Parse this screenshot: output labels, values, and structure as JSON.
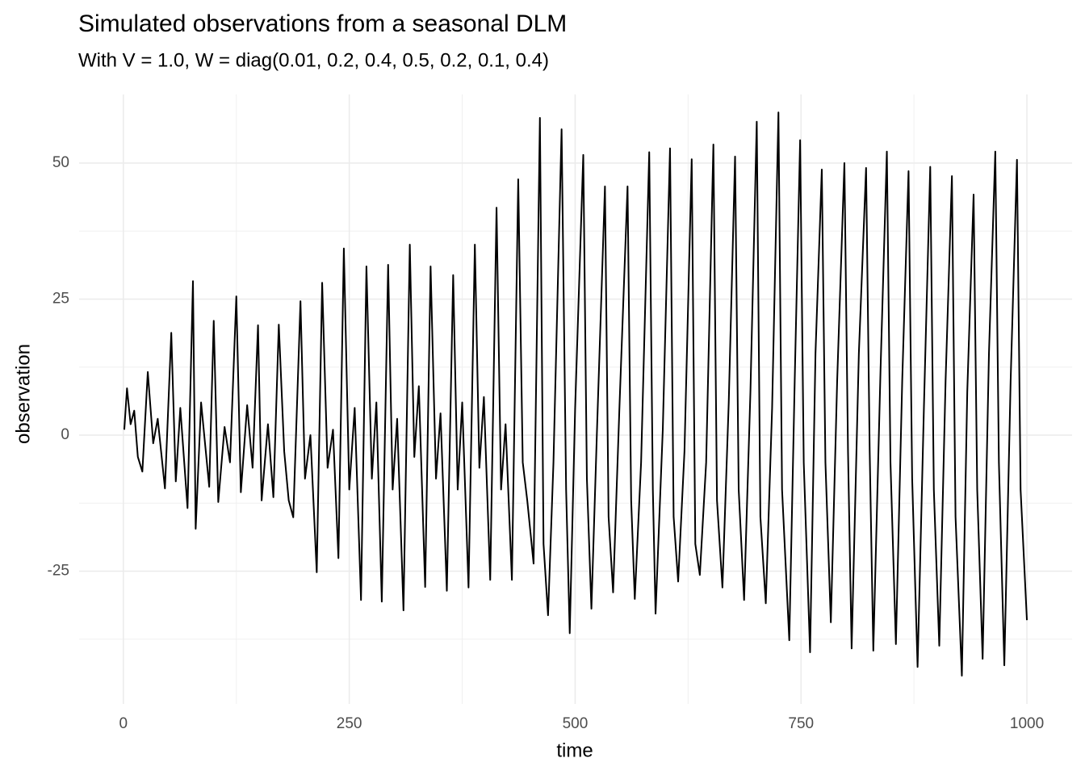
{
  "chart_data": {
    "type": "line",
    "title": "Simulated observations from a seasonal DLM",
    "subtitle": "With V = 1.0, W = diag(0.01, 0.2, 0.4, 0.5, 0.2, 0.1, 0.4)",
    "x_label": "time",
    "y_label": "observation",
    "xlim": [
      -49,
      1050
    ],
    "ylim": [
      -49.4,
      62.6
    ],
    "xticks": [
      0,
      250,
      500,
      750,
      1000
    ],
    "yticks": [
      -25,
      0,
      25,
      50
    ],
    "xminor": [
      125,
      375,
      625,
      875
    ],
    "yminor": [
      -37.5,
      -12.5,
      12.5,
      37.5
    ],
    "grid": true,
    "x": [
      1,
      4,
      8,
      12,
      16,
      21,
      27,
      33,
      38,
      46,
      53,
      58,
      63,
      71,
      77,
      80,
      86,
      95,
      100,
      105,
      112,
      118,
      125,
      130,
      137,
      143,
      149,
      153,
      160,
      166,
      172,
      178,
      183,
      188,
      196,
      201,
      207,
      214,
      220,
      226,
      232,
      238,
      244,
      250,
      256,
      263,
      269,
      275,
      280,
      286,
      293,
      298,
      303,
      310,
      317,
      322,
      327,
      334,
      340,
      346,
      351,
      358,
      365,
      370,
      375,
      382,
      389,
      394,
      399,
      406,
      413,
      418,
      423,
      430,
      437,
      442,
      447,
      454,
      461,
      465,
      470,
      476,
      485,
      490,
      494,
      500,
      509,
      513,
      518,
      524,
      533,
      537,
      542,
      549,
      558,
      562,
      566,
      573,
      582,
      586,
      589,
      597,
      605,
      609,
      614,
      621,
      629,
      633,
      638,
      645,
      653,
      657,
      663,
      670,
      677,
      681,
      687,
      694,
      701,
      705,
      711,
      718,
      725,
      729,
      737,
      743,
      749,
      753,
      760,
      766,
      773,
      777,
      783,
      790,
      798,
      802,
      806,
      814,
      822,
      826,
      830,
      838,
      845,
      849,
      855,
      862,
      869,
      873,
      879,
      886,
      893,
      897,
      903,
      910,
      917,
      921,
      928,
      934,
      941,
      945,
      951,
      958,
      965,
      969,
      975,
      982,
      989,
      993,
      1000
    ],
    "series": [
      {
        "name": "observation",
        "color": "#000000",
        "values": [
          1,
          8.6,
          2,
          4.5,
          -4,
          -6.7,
          11.6,
          -1.5,
          3,
          -9.8,
          18.8,
          -8.5,
          5,
          -13.4,
          28.3,
          -17.2,
          6,
          -9.5,
          21,
          -12.3,
          1.5,
          -5,
          25.5,
          -10.5,
          5.5,
          -6,
          20.2,
          -12,
          2,
          -11.4,
          20.3,
          -3,
          -12,
          -15.1,
          24.6,
          -8,
          0,
          -25.2,
          28,
          -6,
          1,
          -22.6,
          34.3,
          -10,
          5,
          -30.3,
          31,
          -8,
          6,
          -30.6,
          31.3,
          -10,
          3,
          -32.2,
          35,
          -4,
          9,
          -27.9,
          31,
          -8,
          4,
          -28.6,
          29.4,
          -10,
          6,
          -28,
          35,
          -6,
          7,
          -26.6,
          41.8,
          -10,
          2,
          -26.6,
          47,
          -5,
          -12,
          -23.6,
          58.3,
          -20,
          -33.1,
          -5,
          56.2,
          -10,
          -36.4,
          5,
          51.5,
          -8,
          -31.9,
          0,
          45.7,
          -15,
          -28.9,
          5,
          45.7,
          -12,
          -30.1,
          -5,
          52,
          -10,
          -32.8,
          1,
          52.7,
          -15,
          -26.9,
          -3,
          50.7,
          -20,
          -25.7,
          -5,
          53.4,
          -12,
          -28,
          6,
          51.2,
          -10,
          -30.3,
          8,
          57.6,
          -15,
          -30.9,
          5,
          59.3,
          -10,
          -37.7,
          10,
          54.2,
          -5,
          -39.9,
          15,
          48.8,
          -5,
          -34.4,
          10,
          50,
          -3,
          -39.2,
          15,
          49.1,
          -3,
          -39.6,
          12,
          52.1,
          -5,
          -38.4,
          10,
          48.5,
          -8,
          -42.6,
          5,
          49.3,
          -10,
          -38.7,
          10,
          47.6,
          -15,
          -44.2,
          8,
          44.2,
          -10,
          -41.1,
          15,
          52.1,
          -5,
          -42.3,
          10,
          50.6,
          -10,
          -34
        ]
      }
    ]
  }
}
